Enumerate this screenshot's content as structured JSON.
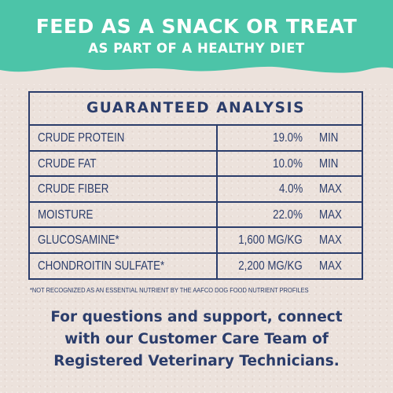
{
  "banner": {
    "headline": "FEED AS A SNACK OR TREAT",
    "subheadline": "AS PART OF A HEALTHY DIET",
    "color": "#4cc4a8"
  },
  "analysis": {
    "title": "GUARANTEED ANALYSIS",
    "rows": [
      {
        "name": "CRUDE PROTEIN",
        "amount": "19.0%",
        "qualifier": "MIN"
      },
      {
        "name": "CRUDE FAT",
        "amount": "10.0%",
        "qualifier": "MIN"
      },
      {
        "name": "CRUDE FIBER",
        "amount": "4.0%",
        "qualifier": "MAX"
      },
      {
        "name": "MOISTURE",
        "amount": "22.0%",
        "qualifier": "MAX"
      },
      {
        "name": "GLUCOSAMINE*",
        "amount": "1,600 MG/KG",
        "qualifier": "MAX"
      },
      {
        "name": "CHONDROITIN SULFATE*",
        "amount": "2,200 MG/KG",
        "qualifier": "MAX"
      }
    ],
    "color": "#2b3d6b"
  },
  "footnote": "*NOT RECOGNIZED AS AN ESSENTIAL NUTRIENT BY THE AAFCO DOG FOOD NUTRIENT PROFILES",
  "support": {
    "line1": "For questions and support, connect",
    "line2": "with our Customer Care Team of",
    "line3": "Registered Veterinary Technicians."
  }
}
